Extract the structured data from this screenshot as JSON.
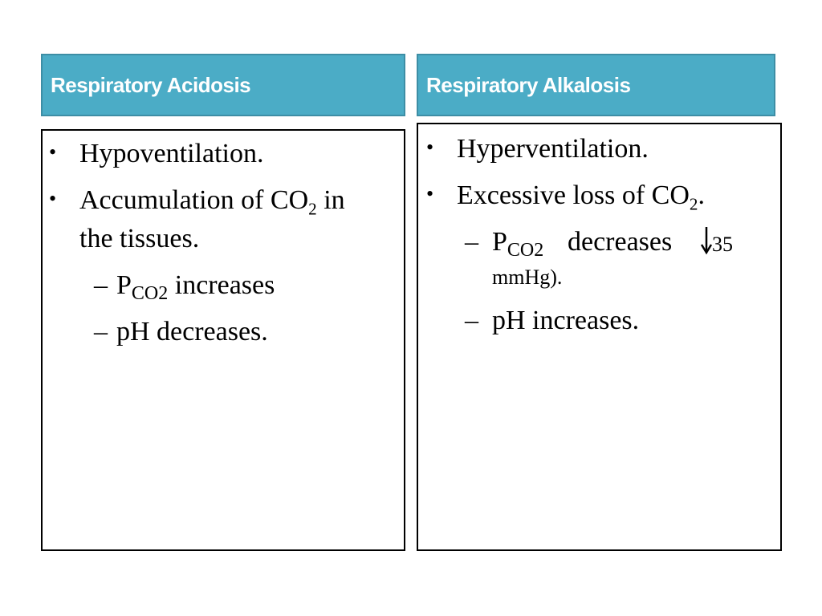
{
  "left": {
    "header": "Respiratory Acidosis",
    "bullet1": "Hypoventilation.",
    "bullet2_text": "Accumulation of CO",
    "bullet2_sub": "2",
    "bullet2_tail": " in",
    "bullet2_cont": "the tissues.",
    "sub1_p": "P",
    "sub1_sub": "CO2",
    "sub1_tail": " increases",
    "sub2": "pH decreases."
  },
  "right": {
    "header": "Respiratory Alkalosis",
    "bullet1": "Hyperventilation.",
    "bullet2_text": "Excessive loss of CO",
    "bullet2_sub": "2",
    "bullet2_tail": ".",
    "sub1_p": "P",
    "sub1_sub": "CO2",
    "sub1_mid": "decreases",
    "sub1_num": "35",
    "sub1_cont": "mmHg).",
    "sub2": "pH increases."
  },
  "icons": {
    "bullet": "bullet-dot",
    "dash": "en-dash",
    "arrow": "down-arrow-icon"
  }
}
